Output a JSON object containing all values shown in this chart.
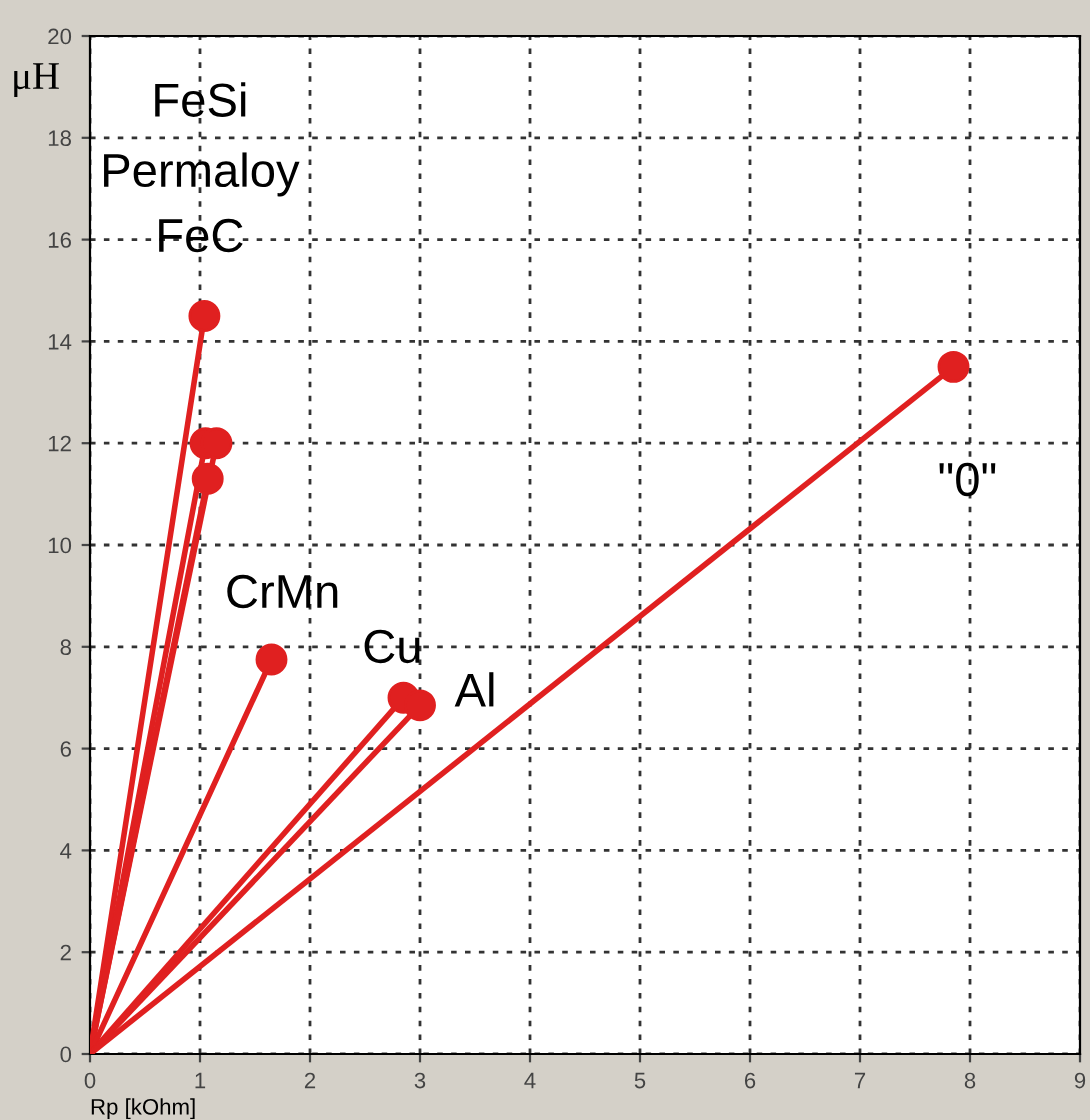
{
  "chart_data": {
    "type": "line",
    "xlabel": "Rp [kOhm]",
    "ylabel": "μH",
    "xlim": [
      0,
      9
    ],
    "ylim": [
      0,
      20
    ],
    "xticks": [
      0,
      1,
      2,
      3,
      4,
      5,
      6,
      7,
      8,
      9
    ],
    "yticks": [
      0,
      2,
      4,
      6,
      8,
      10,
      12,
      14,
      16,
      18,
      20
    ],
    "grid": true,
    "line_style": "solid",
    "series": [
      {
        "color": "#e02020",
        "x": [
          0,
          1.04
        ],
        "values": [
          0,
          14.5
        ]
      },
      {
        "color": "#e02020",
        "x": [
          0,
          1.05
        ],
        "values": [
          0,
          12.0
        ]
      },
      {
        "color": "#e02020",
        "x": [
          0,
          1.15
        ],
        "values": [
          0,
          12.0
        ]
      },
      {
        "color": "#e02020",
        "x": [
          0,
          1.07
        ],
        "values": [
          0,
          11.3
        ]
      },
      {
        "color": "#e02020",
        "x": [
          0,
          1.65
        ],
        "values": [
          0,
          7.75
        ]
      },
      {
        "color": "#e02020",
        "x": [
          0,
          2.85
        ],
        "values": [
          0,
          7.0
        ]
      },
      {
        "color": "#e02020",
        "x": [
          0,
          3.0
        ],
        "values": [
          0,
          6.85
        ]
      },
      {
        "color": "#e02020",
        "x": [
          0,
          7.85
        ],
        "values": [
          0,
          13.5
        ]
      },
      {
        "type": "scatter",
        "marker": "circle",
        "color": "#e02020",
        "x": [
          1.04,
          1.05,
          1.15,
          1.07,
          1.65,
          2.85,
          3.0,
          7.85
        ],
        "values": [
          14.5,
          12.0,
          12.0,
          11.3,
          7.75,
          7.0,
          6.85,
          13.5
        ]
      }
    ],
    "annotations": [
      "FeSi",
      "Permaloy",
      "FeC",
      {
        "text": "CrMn",
        "x": 1.65,
        "y": 7.75
      },
      {
        "text": "Cu",
        "x": 2.85,
        "y": 7.0
      },
      {
        "text": "Al",
        "x": 3.0,
        "y": 6.85
      },
      {
        "text": "\"0\"",
        "x": 7.85,
        "y": 13.5
      }
    ]
  }
}
